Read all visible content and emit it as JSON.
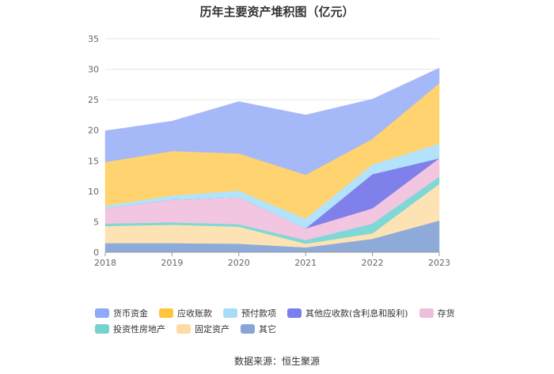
{
  "chart_data": {
    "type": "area",
    "title": "历年主要资产堆积图（亿元）",
    "x": [
      "2018",
      "2019",
      "2020",
      "2021",
      "2022",
      "2023"
    ],
    "ylim": [
      0,
      35
    ],
    "yticks": [
      0,
      5,
      10,
      15,
      20,
      25,
      30,
      35
    ],
    "grid": true,
    "legend_position": "bottom",
    "stacked": true,
    "series": [
      {
        "name": "其它",
        "color": "#8eaad8",
        "values": [
          1.5,
          1.5,
          1.4,
          0.8,
          2.2,
          5.2
        ]
      },
      {
        "name": "固定资产",
        "color": "#fde2b4",
        "values": [
          2.8,
          3.0,
          2.8,
          0.6,
          0.9,
          6.0
        ]
      },
      {
        "name": "投资性房地产",
        "color": "#7fd8d6",
        "values": [
          0.4,
          0.4,
          0.4,
          0.6,
          1.6,
          1.2
        ]
      },
      {
        "name": "存货",
        "color": "#f2c6e0",
        "values": [
          2.5,
          3.7,
          4.4,
          1.9,
          2.5,
          3.0
        ]
      },
      {
        "name": "其他应收款(含利息和股利)",
        "color": "#8080ea",
        "values": [
          0.0,
          0.0,
          0.0,
          0.0,
          5.6,
          0.0
        ]
      },
      {
        "name": "预付款项",
        "color": "#b3e3fb",
        "values": [
          0.4,
          0.7,
          1.1,
          1.6,
          1.6,
          2.4
        ]
      },
      {
        "name": "应收账款",
        "color": "#ffd36f",
        "values": [
          7.2,
          7.3,
          6.1,
          7.2,
          4.2,
          9.9
        ]
      },
      {
        "name": "货币资金",
        "color": "#a5b8f8",
        "values": [
          5.1,
          4.9,
          8.5,
          9.8,
          6.5,
          2.5
        ]
      }
    ]
  },
  "legend": {
    "row1": [
      {
        "label": "货币资金",
        "color": "#8fa8f8"
      },
      {
        "label": "应收账款",
        "color": "#ffc53d"
      },
      {
        "label": "预付款项",
        "color": "#a6dcf8"
      },
      {
        "label": "其他应收款(含利息和股利)",
        "color": "#7b7ef0"
      },
      {
        "label": "存货",
        "color": "#eebfdc"
      }
    ],
    "row2": [
      {
        "label": "投资性房地产",
        "color": "#74d2cf"
      },
      {
        "label": "固定资产",
        "color": "#fddca4"
      },
      {
        "label": "其它",
        "color": "#89a5d6"
      }
    ]
  },
  "source": "数据来源：恒生聚源"
}
